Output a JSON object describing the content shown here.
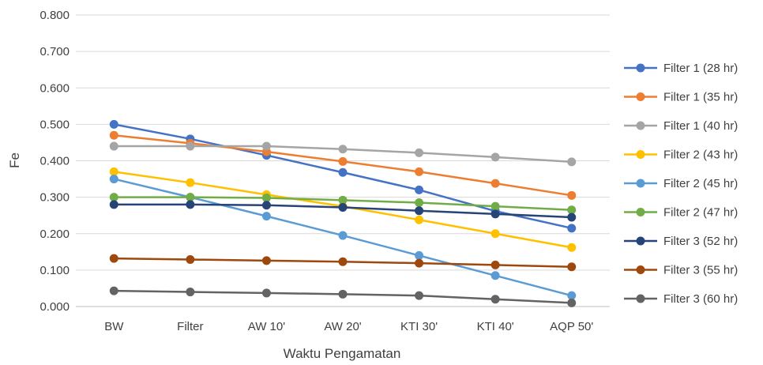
{
  "chart_data": {
    "type": "line",
    "title": "",
    "xlabel": "Waktu Pengamatan",
    "ylabel": "Fe",
    "ylim": [
      0,
      0.8
    ],
    "yticks": [
      "0.000",
      "0.100",
      "0.200",
      "0.300",
      "0.400",
      "0.500",
      "0.600",
      "0.700",
      "0.800"
    ],
    "grid": "horizontal",
    "legend_position": "right",
    "categories": [
      "BW",
      "Filter",
      "AW 10'",
      "AW 20'",
      "KTI 30'",
      "KTI 40'",
      "AQP 50'"
    ],
    "series": [
      {
        "name": "Filter 1 (28 hr)",
        "color": "#4472C4",
        "values": [
          0.5,
          0.46,
          0.415,
          0.368,
          0.32,
          0.262,
          0.215
        ]
      },
      {
        "name": "Filter 1 (35 hr)",
        "color": "#ED7D31",
        "values": [
          0.47,
          0.448,
          0.425,
          0.398,
          0.37,
          0.338,
          0.305
        ]
      },
      {
        "name": "Filter 1 (40 hr)",
        "color": "#A5A5A5",
        "values": [
          0.44,
          0.44,
          0.44,
          0.432,
          0.422,
          0.41,
          0.397
        ]
      },
      {
        "name": "Filter 2 (43 hr)",
        "color": "#FFC000",
        "values": [
          0.37,
          0.34,
          0.307,
          0.275,
          0.238,
          0.2,
          0.162
        ]
      },
      {
        "name": "Filter 2 (45 hr)",
        "color": "#5B9BD5",
        "values": [
          0.35,
          0.3,
          0.248,
          0.195,
          0.14,
          0.085,
          0.03
        ]
      },
      {
        "name": "Filter 2 (47 hr)",
        "color": "#70AD47",
        "values": [
          0.3,
          0.3,
          0.298,
          0.292,
          0.285,
          0.275,
          0.265
        ]
      },
      {
        "name": "Filter 3 (52 hr)",
        "color": "#264478",
        "values": [
          0.28,
          0.28,
          0.278,
          0.272,
          0.263,
          0.254,
          0.245
        ]
      },
      {
        "name": "Filter 3 (55 hr)",
        "color": "#9E480E",
        "values": [
          0.132,
          0.129,
          0.126,
          0.123,
          0.119,
          0.114,
          0.109
        ]
      },
      {
        "name": "Filter 3 (60 hr)",
        "color": "#636363",
        "values": [
          0.043,
          0.04,
          0.037,
          0.034,
          0.03,
          0.02,
          0.01
        ]
      }
    ]
  }
}
